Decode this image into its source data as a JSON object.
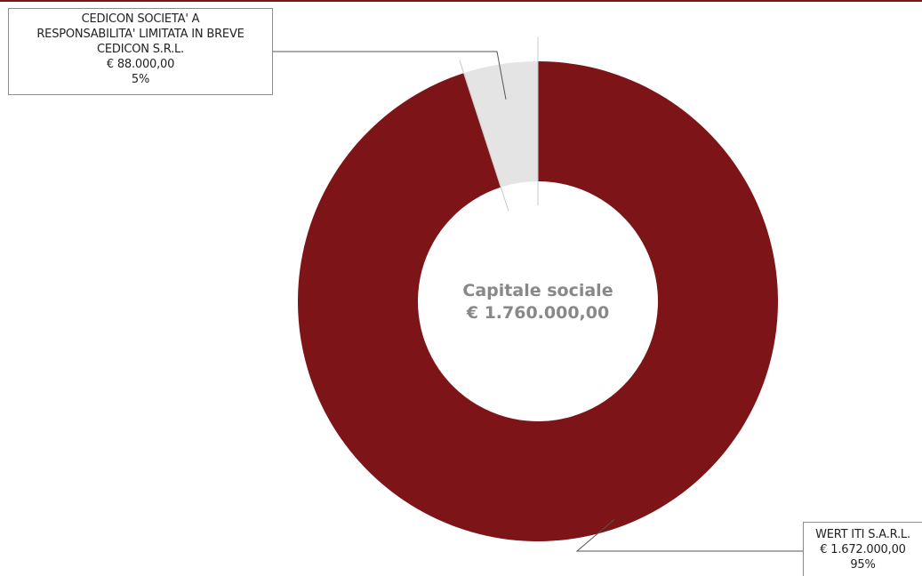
{
  "chart_data": {
    "type": "pie",
    "variant": "donut",
    "center_title": "Capitale sociale",
    "center_value": "€ 1.760.000,00",
    "total": 1760000,
    "slices": [
      {
        "name_lines": [
          "CEDICON SOCIETA' A",
          "RESPONSABILITA' LIMITATA IN BREVE",
          "CEDICON S.R.L."
        ],
        "value": 88000,
        "value_label": "€ 88.000,00",
        "percent_label": "5%",
        "color": "#e4e4e4"
      },
      {
        "name_lines": [
          "WERT ITI S.A.R.L."
        ],
        "value": 1672000,
        "value_label": "€ 1.672.000,00",
        "percent_label": "95%",
        "color": "#7c1418"
      }
    ],
    "legend": "none",
    "label_placement": "outside-callouts"
  },
  "colors": {
    "accent": "#7c1418",
    "minor_slice": "#e4e4e4",
    "center_text": "#888888",
    "leader_line": "#555555"
  }
}
